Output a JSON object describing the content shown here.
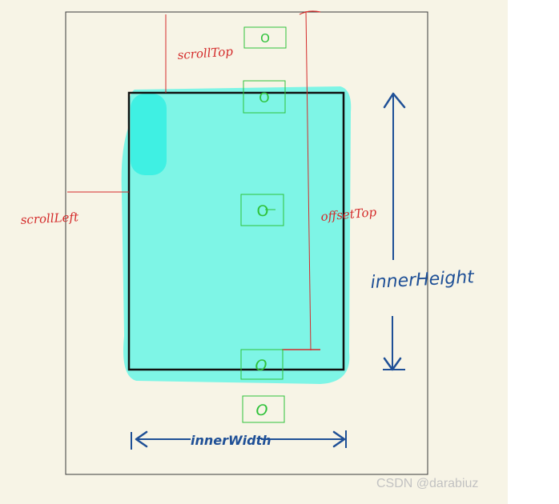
{
  "labels": {
    "scroll_top": "scrollTop",
    "scroll_left": "scrollLeft",
    "offset_top": "offsetTop",
    "inner_height": "innerHeight",
    "inner_width": "innerWidth"
  },
  "items": [
    {
      "label": "O"
    },
    {
      "label": "O"
    },
    {
      "label": "O"
    },
    {
      "label": "O"
    },
    {
      "label": "O"
    }
  ],
  "watermark": "CSDN @darabiuz",
  "colors": {
    "paper": "#f7f4e6",
    "viewport_fill": "#7ef5e6",
    "viewport_highlight": "#3ff0e3",
    "viewport_border": "#111111",
    "annotation_red": "#d42a2a",
    "annotation_blue": "#1e4f96",
    "element_green": "#2fc23a"
  }
}
